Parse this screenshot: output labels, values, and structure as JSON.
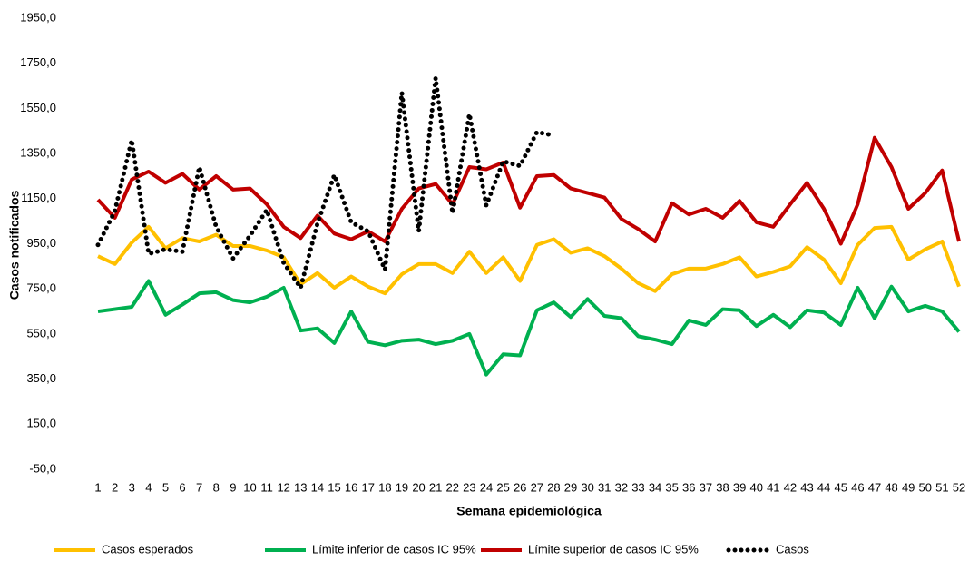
{
  "chart_data": {
    "type": "line",
    "x_label": "Semana epidemiológica",
    "y_label": "Casos notificados",
    "categories": [
      "1",
      "2",
      "3",
      "4",
      "5",
      "6",
      "7",
      "8",
      "9",
      "10",
      "11",
      "12",
      "13",
      "14",
      "15",
      "16",
      "17",
      "18",
      "19",
      "20",
      "21",
      "22",
      "23",
      "24",
      "25",
      "26",
      "27",
      "28",
      "29",
      "30",
      "31",
      "32",
      "33",
      "34",
      "35",
      "36",
      "37",
      "38",
      "39",
      "40",
      "41",
      "42",
      "43",
      "44",
      "45",
      "46",
      "47",
      "48",
      "49",
      "50",
      "51",
      "52"
    ],
    "ylim": [
      -50,
      1950
    ],
    "yticks": [
      {
        "value": -50,
        "label": "-50,0"
      },
      {
        "value": 150,
        "label": "150,0"
      },
      {
        "value": 350,
        "label": "350,0"
      },
      {
        "value": 550,
        "label": "550,0"
      },
      {
        "value": 750,
        "label": "750,0"
      },
      {
        "value": 950,
        "label": "950,0"
      },
      {
        "value": 1150,
        "label": "1150,0"
      },
      {
        "value": 1350,
        "label": "1350,0"
      },
      {
        "value": 1550,
        "label": "1550,0"
      },
      {
        "value": 1750,
        "label": "1750,0"
      },
      {
        "value": 1950,
        "label": "1950,0"
      }
    ],
    "grid": false,
    "legend": "bottom",
    "series": [
      {
        "name": "Casos esperados",
        "color": "#ffc000",
        "style": "solid",
        "values": [
          895,
          860,
          955,
          1025,
          930,
          975,
          960,
          990,
          940,
          940,
          920,
          890,
          770,
          820,
          755,
          805,
          760,
          730,
          815,
          860,
          860,
          820,
          915,
          820,
          890,
          785,
          945,
          970,
          910,
          930,
          895,
          840,
          775,
          740,
          815,
          840,
          840,
          860,
          890,
          805,
          825,
          850,
          935,
          880,
          775,
          945,
          1020,
          1025,
          880,
          925,
          960,
          760
        ]
      },
      {
        "name": "Límite inferior de casos IC 95%",
        "color": "#00b050",
        "style": "solid",
        "values": [
          650,
          660,
          670,
          785,
          635,
          680,
          730,
          735,
          700,
          690,
          715,
          755,
          565,
          575,
          510,
          650,
          515,
          500,
          520,
          525,
          505,
          520,
          550,
          370,
          460,
          455,
          655,
          690,
          625,
          705,
          630,
          620,
          540,
          525,
          505,
          610,
          590,
          660,
          655,
          585,
          635,
          580,
          655,
          645,
          590,
          755,
          620,
          760,
          650,
          675,
          650,
          560
        ]
      },
      {
        "name": "Límite superior de casos IC 95%",
        "color": "#c00000",
        "style": "solid",
        "values": [
          1145,
          1065,
          1235,
          1270,
          1220,
          1260,
          1190,
          1250,
          1190,
          1195,
          1125,
          1025,
          975,
          1075,
          995,
          970,
          1005,
          960,
          1105,
          1195,
          1215,
          1125,
          1290,
          1280,
          1310,
          1110,
          1250,
          1255,
          1195,
          1175,
          1155,
          1060,
          1015,
          960,
          1130,
          1080,
          1105,
          1065,
          1140,
          1045,
          1025,
          1125,
          1220,
          1105,
          950,
          1125,
          1420,
          1290,
          1105,
          1175,
          1275,
          960
        ]
      },
      {
        "name": "Casos",
        "color": "#000000",
        "style": "dotted",
        "values": [
          945,
          1095,
          1410,
          905,
          925,
          915,
          1290,
          1025,
          885,
          985,
          1100,
          865,
          755,
          1040,
          1255,
          1045,
          1005,
          835,
          1620,
          1005,
          1685,
          1085,
          1525,
          1120,
          1315,
          1295,
          1445,
          1430,
          null,
          null,
          null,
          null,
          null,
          null,
          null,
          null,
          null,
          null,
          null,
          null,
          null,
          null,
          null,
          null,
          null,
          null,
          null,
          null,
          null,
          null,
          null,
          null
        ]
      }
    ]
  }
}
